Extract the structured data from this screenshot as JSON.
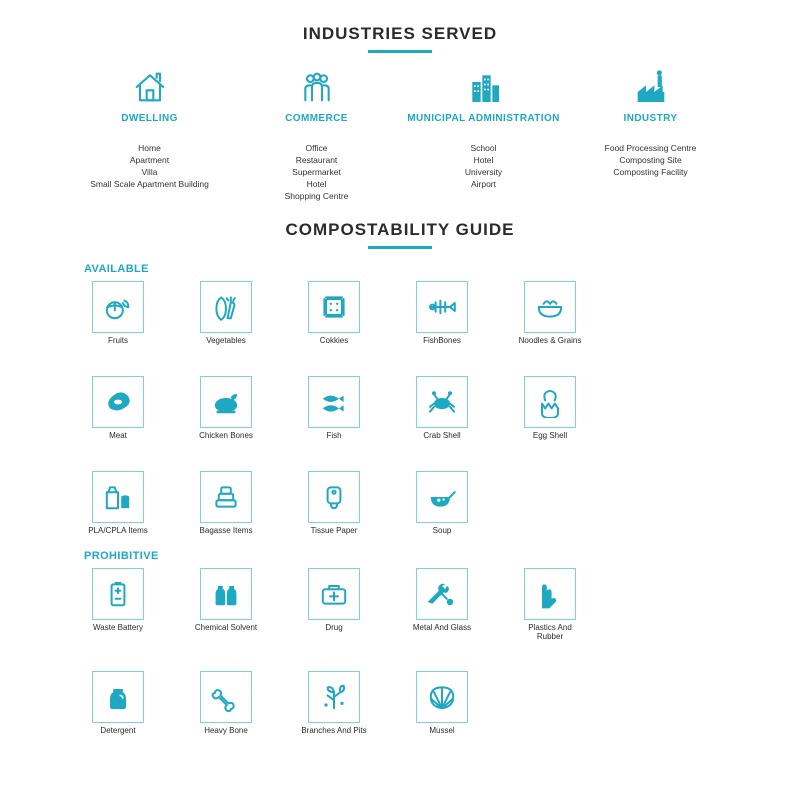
{
  "colors": {
    "accent": "#1fa8c2",
    "text": "#2b2b2b",
    "iconBorder": "#7fd0dd",
    "bg": "#ffffff"
  },
  "section1": {
    "title": "INDUSTRIES SERVED",
    "columns": [
      {
        "icon": "house",
        "label": "DWELLING",
        "items": [
          "Home",
          "Apartment",
          "Villa",
          "Small Scale Apartment Building"
        ]
      },
      {
        "icon": "people",
        "label": "COMMERCE",
        "items": [
          "Office",
          "Restaurant",
          "Supermarket",
          "Hotel",
          "Shopping Centre"
        ]
      },
      {
        "icon": "buildings",
        "label": "MUNICIPAL ADMINISTRATION",
        "items": [
          "School",
          "Hotel",
          "University",
          "Airport"
        ]
      },
      {
        "icon": "factory",
        "label": "INDUSTRY",
        "items": [
          "Food Processing Centre",
          "Composting Site",
          "Composting Facility"
        ]
      }
    ]
  },
  "section2": {
    "title": "COMPOSTABILITY GUIDE",
    "available_label": "AVAILABLE",
    "prohibitive_label": "PROHIBITIVE",
    "available": [
      {
        "icon": "fruit",
        "label": "Fruits"
      },
      {
        "icon": "veg",
        "label": "Vegetables"
      },
      {
        "icon": "cookie",
        "label": "Cokkies"
      },
      {
        "icon": "fishbone",
        "label": "FishBones"
      },
      {
        "icon": "bowl",
        "label": "Noodles & Grains"
      },
      {
        "icon": "meat",
        "label": "Meat"
      },
      {
        "icon": "chicken",
        "label": "Chicken Bones"
      },
      {
        "icon": "fish",
        "label": "Fish"
      },
      {
        "icon": "crab",
        "label": "Crab Shell"
      },
      {
        "icon": "egg",
        "label": "Egg Shell"
      },
      {
        "icon": "pla",
        "label": "PLA/CPLA Items"
      },
      {
        "icon": "bagasse",
        "label": "Bagasse Items"
      },
      {
        "icon": "tissue",
        "label": "Tissue Paper"
      },
      {
        "icon": "soup",
        "label": "Soup"
      }
    ],
    "prohibitive": [
      {
        "icon": "battery",
        "label": "Waste Battery"
      },
      {
        "icon": "bottles",
        "label": "Chemical Solvent"
      },
      {
        "icon": "medkit",
        "label": "Drug"
      },
      {
        "icon": "tools",
        "label": "Metal And Glass"
      },
      {
        "icon": "gloves",
        "label": "Plastics And Rubber"
      },
      {
        "icon": "jug",
        "label": "Detergent"
      },
      {
        "icon": "bone",
        "label": "Heavy Bone"
      },
      {
        "icon": "branch",
        "label": "Branches And Pits"
      },
      {
        "icon": "shell",
        "label": "Mussel"
      }
    ]
  },
  "style": {
    "title_fontsize": 17,
    "industry_label_fontsize": 10,
    "item_fontsize": 8.5,
    "sublabel_fontsize": 11,
    "tile_label_fontsize": 8,
    "tile_size": 52,
    "grid_cols": 5
  }
}
